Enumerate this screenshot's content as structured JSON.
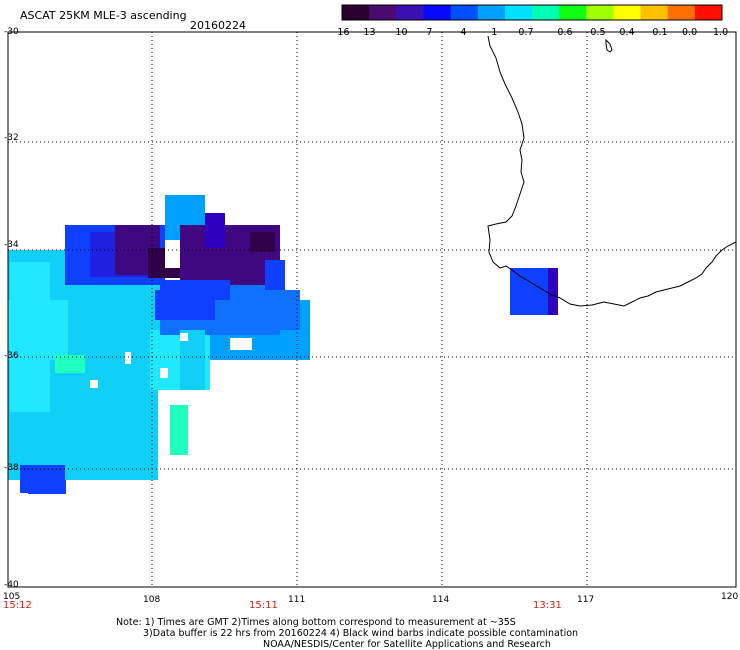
{
  "header": {
    "title": "ASCAT 25KM MLE-3 ascending",
    "date": "20160224"
  },
  "colorbar": {
    "labels": [
      "-16",
      "-13",
      "-10",
      "-7",
      "-4",
      "-1",
      "-0.7",
      "-0.6",
      "-0.5",
      "-0.4",
      "-0.1",
      "0.0",
      "1.0"
    ],
    "colors": [
      "#2a0030",
      "#4a0a70",
      "#3a10b0",
      "#0808ff",
      "#0050ff",
      "#00a0ff",
      "#00e0ff",
      "#00ffb0",
      "#10ff10",
      "#a0ff00",
      "#ffff00",
      "#ffc000",
      "#ff7000",
      "#ff1000"
    ]
  },
  "axes": {
    "lat_labels": [
      "-30",
      "-32",
      "-34",
      "-36",
      "-38",
      "-40"
    ],
    "lon_labels": [
      "105",
      "108",
      "111",
      "114",
      "117",
      "120"
    ]
  },
  "times": [
    "15:12",
    "15:11",
    "13:31"
  ],
  "notes": [
    "Note: 1) Times are GMT 2)Times along bottom correspond to measurement at ~35S",
    "3)Data buffer is 22 hrs from 20160224 4) Black wind barbs indicate possible contamination",
    "NOAA/NESDIS/Center for Satellite Applications and Research"
  ],
  "map": {
    "lon_range": [
      105,
      120
    ],
    "lat_range": [
      -40,
      -30
    ],
    "grid": "dotted",
    "data_colors": [
      "#20e8ff",
      "#10d0f8",
      "#00a0ff",
      "#1070ff",
      "#1040ff",
      "#2020e0",
      "#3000c0",
      "#400880",
      "#300048",
      "#20ffc0"
    ]
  }
}
